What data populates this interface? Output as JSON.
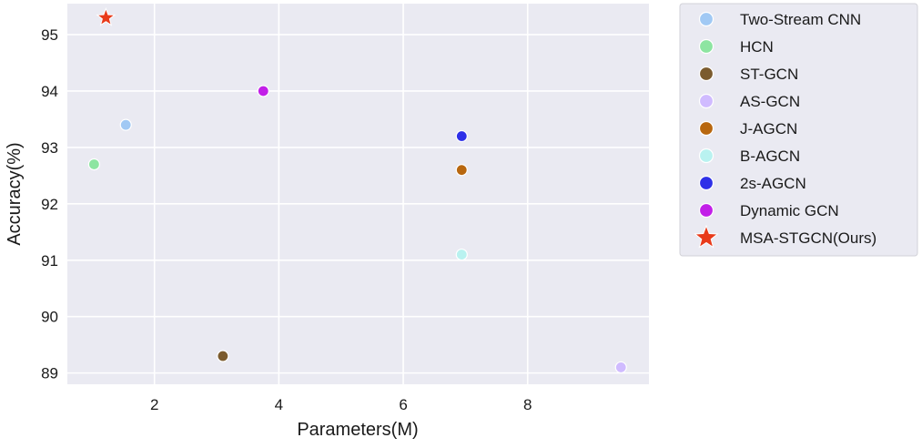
{
  "chart_data": {
    "type": "scatter",
    "title": "",
    "xlabel": "Parameters(M)",
    "ylabel": "Accuracy(%)",
    "xlim": [
      0.6,
      9.95
    ],
    "ylim": [
      88.8,
      95.55
    ],
    "xticks": [
      2,
      4,
      6,
      8
    ],
    "yticks": [
      89,
      90,
      91,
      92,
      93,
      94,
      95
    ],
    "grid": true,
    "background_color": "#EAEAF2",
    "grid_color": "#FFFFFF",
    "legend_position": "outside-right",
    "series": [
      {
        "name": "Two-Stream CNN",
        "marker": "circle",
        "color": "#A1C9F4",
        "x": [
          1.54
        ],
        "y": [
          93.4
        ]
      },
      {
        "name": "HCN",
        "marker": "circle",
        "color": "#8DE5A1",
        "x": [
          1.03
        ],
        "y": [
          92.7
        ]
      },
      {
        "name": "ST-GCN",
        "marker": "circle",
        "color": "#7B5B2E",
        "x": [
          3.1
        ],
        "y": [
          89.3
        ]
      },
      {
        "name": "AS-GCN",
        "marker": "circle",
        "color": "#D0BBFF",
        "x": [
          9.5
        ],
        "y": [
          89.1
        ]
      },
      {
        "name": "J-AGCN",
        "marker": "circle",
        "color": "#B8670F",
        "x": [
          6.94
        ],
        "y": [
          92.6
        ]
      },
      {
        "name": "B-AGCN",
        "marker": "circle",
        "color": "#B9F2F0",
        "x": [
          6.94
        ],
        "y": [
          91.1
        ]
      },
      {
        "name": "2s-AGCN",
        "marker": "circle",
        "color": "#2E30E8",
        "x": [
          6.94
        ],
        "y": [
          93.2
        ]
      },
      {
        "name": "Dynamic GCN",
        "marker": "circle",
        "color": "#C21FE8",
        "x": [
          3.75
        ],
        "y": [
          94.0
        ]
      },
      {
        "name": "MSA-STGCN(Ours)",
        "marker": "star",
        "color": "#E83A1A",
        "x": [
          1.22
        ],
        "y": [
          95.3
        ]
      }
    ]
  }
}
